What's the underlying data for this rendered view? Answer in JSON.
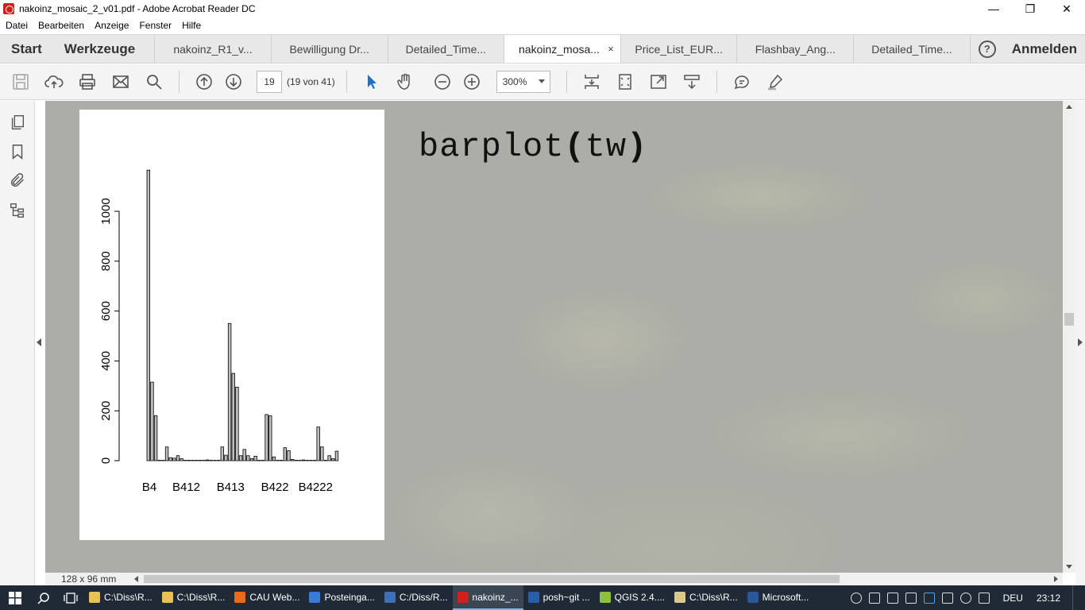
{
  "window": {
    "title": "nakoinz_mosaic_2_v01.pdf - Adobe Acrobat Reader DC",
    "minimize": "—",
    "restore": "❐",
    "close": "✕"
  },
  "menu": [
    "Datei",
    "Bearbeiten",
    "Anzeige",
    "Fenster",
    "Hilfe"
  ],
  "tabs": {
    "start": "Start",
    "tools": "Werkzeuge",
    "documents": [
      "nakoinz_R1_v...",
      "Bewilligung Dr...",
      "Detailed_Time...",
      "nakoinz_mosa...",
      "Price_List_EUR...",
      "Flashbay_Ang...",
      "Detailed_Time..."
    ],
    "active_index": 3,
    "close_glyph": "×",
    "help": "?",
    "login": "Anmelden"
  },
  "toolbar": {
    "page_number": "19",
    "page_of": "(19 von 41)",
    "zoom": "300%"
  },
  "slide": {
    "title_prefix": "barplot",
    "title_open": "(",
    "title_arg": "tw",
    "title_close": ")"
  },
  "chart_data": {
    "type": "bar",
    "title": "",
    "xlabel": "",
    "ylabel": "",
    "ylim": [
      0,
      1200
    ],
    "yticks": [
      0,
      200,
      400,
      600,
      800,
      1000
    ],
    "tick_labels": [
      "B4",
      "B412",
      "B413",
      "B422",
      "B4222"
    ],
    "values": [
      1165,
      315,
      180,
      0,
      0,
      55,
      12,
      10,
      20,
      8,
      0,
      0,
      0,
      0,
      0,
      0,
      3,
      0,
      0,
      0,
      55,
      22,
      550,
      350,
      295,
      20,
      45,
      20,
      8,
      18,
      0,
      0,
      185,
      180,
      15,
      0,
      0,
      52,
      40,
      5,
      0,
      0,
      3,
      0,
      0,
      0,
      135,
      55,
      0,
      20,
      8,
      38
    ]
  },
  "status": {
    "page_size": "128 x 96 mm"
  },
  "taskbar": {
    "items": [
      {
        "label": "C:\\Diss\\R...",
        "color": "#e8c15a"
      },
      {
        "label": "C:\\Diss\\R...",
        "color": "#e8c15a"
      },
      {
        "label": "CAU Web...",
        "color": "#e66a1f"
      },
      {
        "label": "Posteinga...",
        "color": "#3a7bd5"
      },
      {
        "label": "C:/Diss/R...",
        "color": "#3f6fb5"
      },
      {
        "label": "nakoinz_...",
        "color": "#d0201b"
      },
      {
        "label": "posh~git ...",
        "color": "#2a5ea8"
      },
      {
        "label": "QGIS 2.4....",
        "color": "#8bbf3c"
      },
      {
        "label": "C:\\Diss\\R...",
        "color": "#d9c98a"
      },
      {
        "label": "Microsoft...",
        "color": "#2b579a"
      }
    ],
    "active_index": 5,
    "language": "DEU",
    "time": "23:12"
  }
}
